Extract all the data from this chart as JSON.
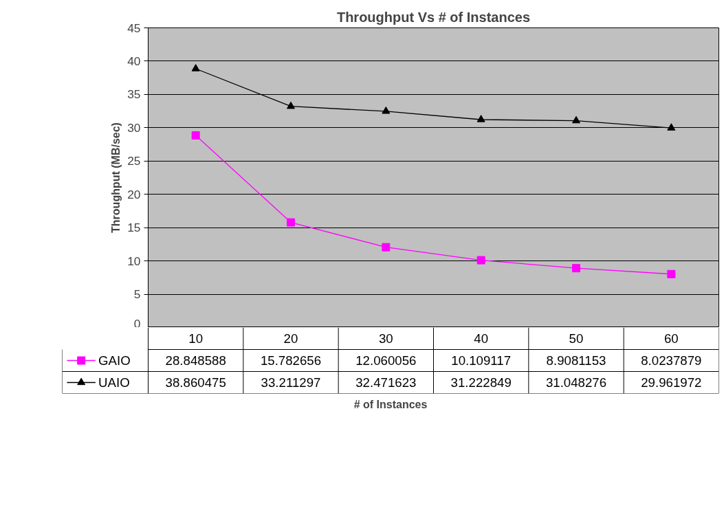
{
  "chart_data": {
    "type": "line",
    "title": "Throughput Vs # of Instances",
    "xlabel": "# of Instances",
    "ylabel": "Throughput (MB/sec)",
    "categories": [
      "10",
      "20",
      "30",
      "40",
      "50",
      "60"
    ],
    "series": [
      {
        "name": "GAIO",
        "color": "#ff00ff",
        "marker": "square",
        "values": [
          28.848588,
          15.782656,
          12.060056,
          10.109117,
          8.9081153,
          8.0237879
        ],
        "value_labels": [
          "28.848588",
          "15.782656",
          "12.060056",
          "10.109117",
          "8.9081153",
          "8.0237879"
        ]
      },
      {
        "name": "UAIO",
        "color": "#000000",
        "marker": "triangle",
        "values": [
          38.860475,
          33.211297,
          32.471623,
          31.222849,
          31.048276,
          29.961972
        ],
        "value_labels": [
          "38.860475",
          "33.211297",
          "32.471623",
          "31.222849",
          "31.048276",
          "29.961972"
        ]
      }
    ],
    "ylim": [
      0,
      45
    ],
    "yticks": [
      0,
      5,
      10,
      15,
      20,
      25,
      30,
      35,
      40,
      45
    ],
    "grid": "y",
    "legend": "bottom"
  }
}
